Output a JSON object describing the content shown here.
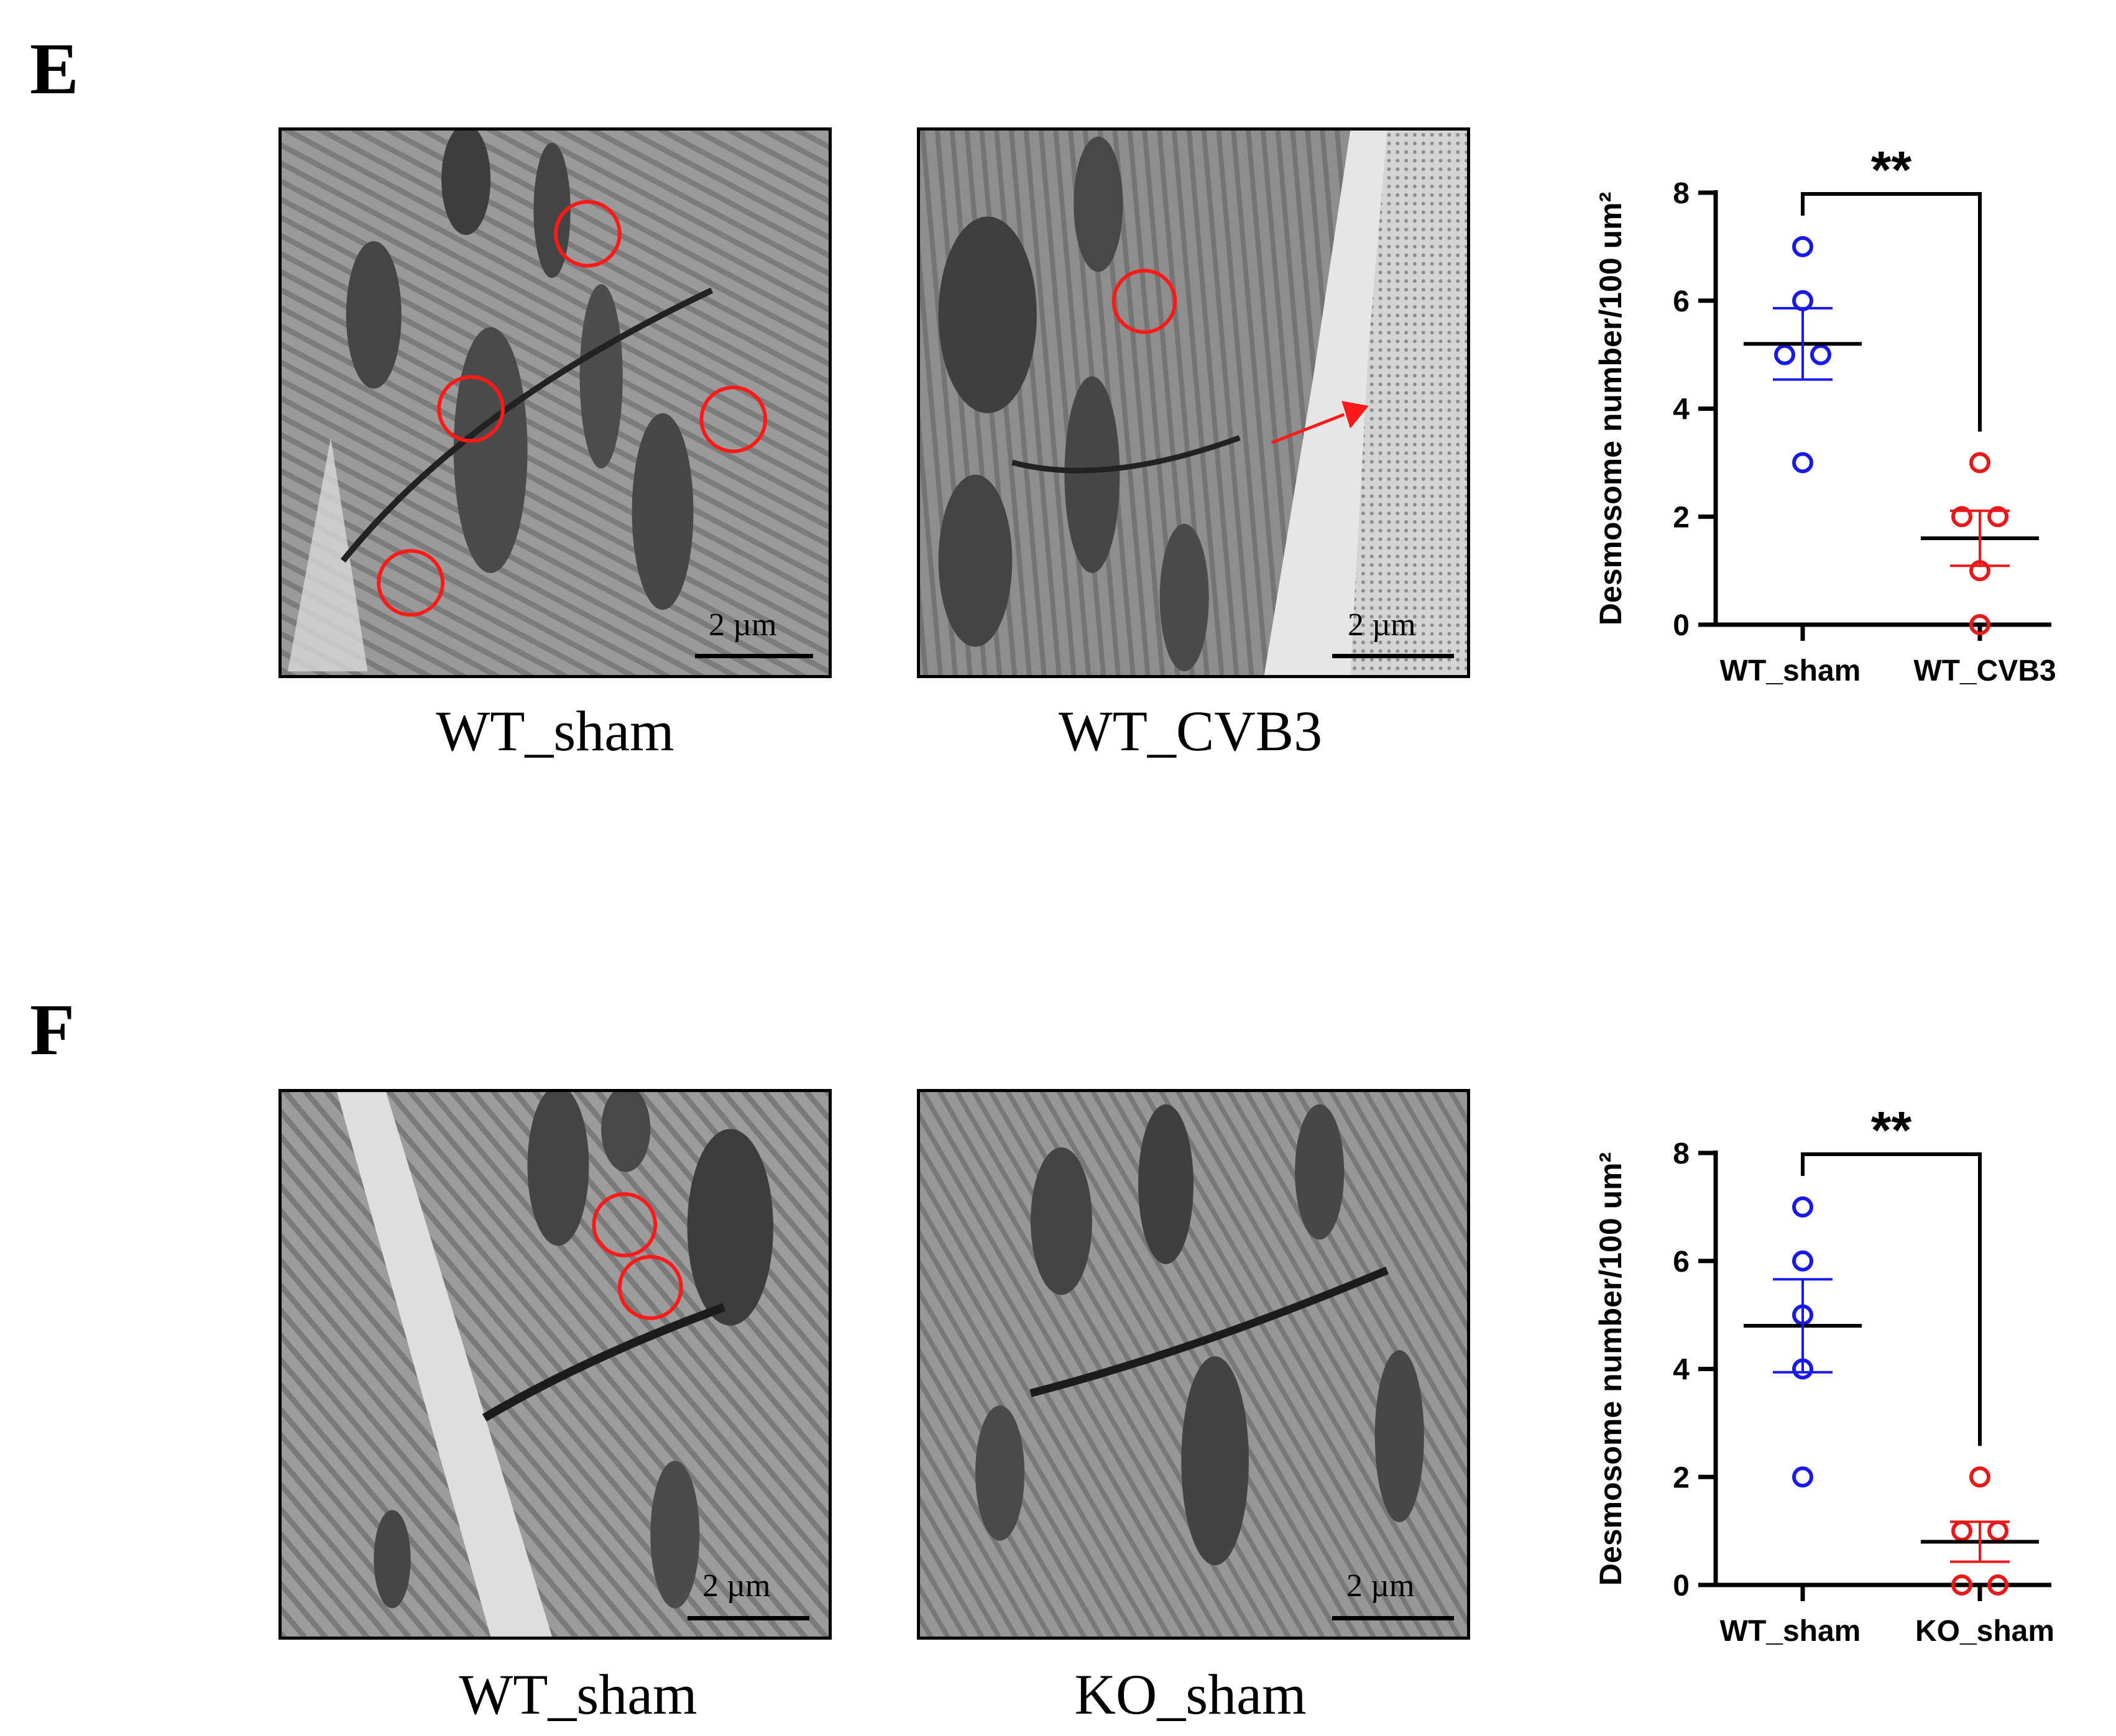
{
  "panels": [
    {
      "letter": "E",
      "images": [
        {
          "caption": "WT_sham",
          "scale": "2 µm"
        },
        {
          "caption": "WT_CVB3",
          "scale": "2 µm"
        }
      ]
    },
    {
      "letter": "F",
      "images": [
        {
          "caption": "WT_sham",
          "scale": "2 µm"
        },
        {
          "caption": "KO_sham",
          "scale": "2 µm"
        }
      ]
    }
  ],
  "colors": {
    "group1": "#1a1ae6",
    "group2": "#e61a1a",
    "circle": "#ff1a1a"
  },
  "chart_data": [
    {
      "type": "scatter",
      "ylabel": "Desmosome number/100 um²",
      "ylim": [
        0,
        8
      ],
      "yticks": [
        "0",
        "2",
        "4",
        "6",
        "8"
      ],
      "categories": [
        "WT_sham",
        "WT_CVB3"
      ],
      "significance": "**",
      "series": [
        {
          "values": [
            7,
            6,
            5,
            5,
            3
          ],
          "mean": 5.2,
          "sem": 0.66,
          "color": "#1a1ae6"
        },
        {
          "values": [
            3,
            2,
            2,
            1,
            0
          ],
          "mean": 1.6,
          "sem": 0.51,
          "color": "#e61a1a"
        }
      ]
    },
    {
      "type": "scatter",
      "ylabel": "Desmosome number/100 um²",
      "ylim": [
        0,
        8
      ],
      "yticks": [
        "0",
        "2",
        "4",
        "6",
        "8"
      ],
      "categories": [
        "WT_sham",
        "KO_sham"
      ],
      "significance": "**",
      "series": [
        {
          "values": [
            7,
            6,
            5,
            4,
            2
          ],
          "mean": 4.8,
          "sem": 0.86,
          "color": "#1a1ae6"
        },
        {
          "values": [
            2,
            1,
            1,
            0,
            0
          ],
          "mean": 0.8,
          "sem": 0.37,
          "color": "#e61a1a"
        }
      ]
    }
  ]
}
